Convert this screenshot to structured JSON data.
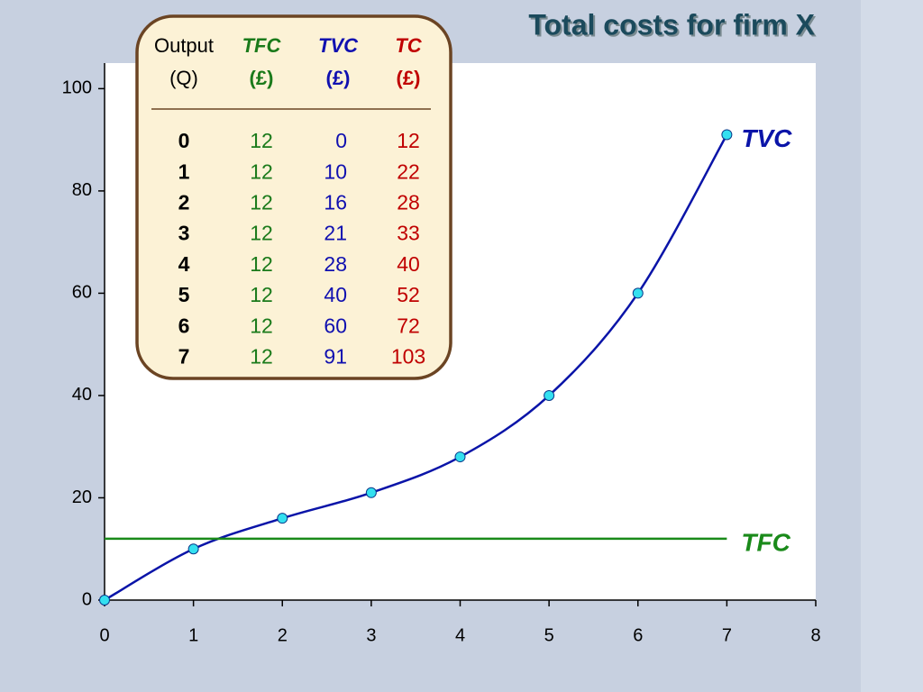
{
  "chart_data": {
    "type": "line",
    "title": "Total costs for firm X",
    "x": [
      0,
      1,
      2,
      3,
      4,
      5,
      6,
      7
    ],
    "series": [
      {
        "name": "TVC",
        "color": "#0a14a8",
        "values": [
          0,
          10,
          16,
          21,
          28,
          40,
          60,
          91
        ],
        "markers": true
      },
      {
        "name": "TFC",
        "color": "#1a8a1a",
        "values": [
          12,
          12,
          12,
          12,
          12,
          12,
          12,
          12
        ],
        "markers": false
      }
    ],
    "xlim": [
      0,
      8
    ],
    "xticks": [
      0,
      1,
      2,
      3,
      4,
      5,
      6,
      7,
      8
    ],
    "ylim": [
      0,
      105
    ],
    "yticks": [
      0,
      20,
      40,
      60,
      80,
      100
    ]
  },
  "table": {
    "columns": [
      {
        "header": [
          "Output",
          "(Q)"
        ],
        "color": "#000000"
      },
      {
        "header": [
          "TFC",
          "(£)"
        ],
        "color": "#1a7a1a"
      },
      {
        "header": [
          "TVC",
          "(£)"
        ],
        "color": "#1010b0"
      },
      {
        "header": [
          "TC",
          "(£)"
        ],
        "color": "#c00000"
      }
    ],
    "rows": [
      [
        0,
        12,
        0,
        12
      ],
      [
        1,
        12,
        10,
        22
      ],
      [
        2,
        12,
        16,
        28
      ],
      [
        3,
        12,
        21,
        33
      ],
      [
        4,
        12,
        28,
        40
      ],
      [
        5,
        12,
        40,
        52
      ],
      [
        6,
        12,
        60,
        72
      ],
      [
        7,
        12,
        91,
        103
      ]
    ]
  }
}
